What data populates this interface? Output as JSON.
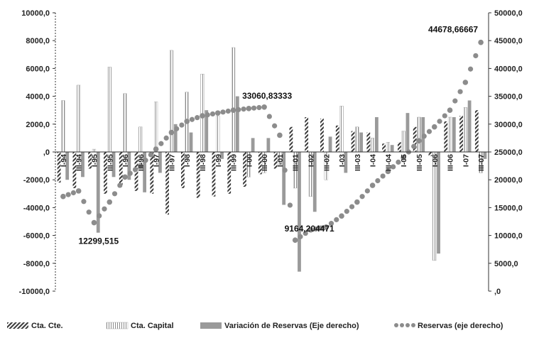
{
  "chart_data": {
    "type": "bar",
    "categories": [
      "I-94",
      "III-94",
      "I-95",
      "III-95",
      "I-96",
      "III-96",
      "I-97",
      "III-97",
      "I-98",
      "III-98",
      "I-99",
      "III-99",
      "I-00",
      "III-00",
      "I-01",
      "III-01",
      "I-02",
      "III-02",
      "I-03",
      "III-03",
      "I-04",
      "III-04",
      "I-05",
      "III-05",
      "I-06",
      "III-06",
      "I-07",
      "III-07"
    ],
    "left_axis": {
      "ylim": [
        -10000,
        10000
      ],
      "ticks": [
        "10000,0",
        "8000,0",
        "6000,0",
        "4000,0",
        "2000,0",
        ",0",
        "-2000,0",
        "-4000,0",
        "-6000,0",
        "-8000,0",
        "-10000,0"
      ]
    },
    "right_axis": {
      "ylim": [
        0,
        50000
      ],
      "ticks": [
        "50000,0",
        "45000,0",
        "40000,0",
        "35000,0",
        "30000,0",
        "25000,0",
        "20000,0",
        "15000,0",
        "10000,0",
        "5000,0",
        ",0"
      ]
    },
    "series": [
      {
        "name": "Cta. Cte.",
        "axis": "left",
        "pattern": "hatch",
        "values": [
          -2200,
          -2600,
          -1200,
          -3000,
          -2500,
          -2800,
          -3000,
          -4500,
          -2600,
          -3300,
          -3200,
          -3000,
          -2500,
          -1600,
          -1200,
          1800,
          2500,
          2400,
          1900,
          1500,
          1400,
          600,
          700,
          1800,
          -300,
          2200,
          2600,
          3000
        ]
      },
      {
        "name": "Cta. Capital",
        "axis": "left",
        "pattern": "vertical",
        "values": [
          3700,
          4800,
          200,
          6100,
          4200,
          1800,
          3600,
          7300,
          4300,
          5600,
          2600,
          7500,
          -1800,
          -1500,
          -900,
          -2600,
          -3200,
          -2000,
          3300,
          1800,
          1000,
          700,
          1500,
          2500,
          -7800,
          2500,
          3200,
          -1500
        ]
      },
      {
        "name": "Variación de Reservas (Eje derecho)",
        "axis": "left",
        "pattern": "solid",
        "values": [
          -2000,
          -1800,
          -5800,
          -1800,
          -2000,
          -2900,
          -1500,
          2000,
          1400,
          3000,
          -500,
          4000,
          1000,
          1000,
          -3800,
          -8600,
          -4300,
          1100,
          -1500,
          1400,
          2500,
          500,
          2800,
          2500,
          -7300,
          2500,
          3700,
          -500
        ]
      },
      {
        "name": "Reservas (eje derecho)",
        "axis": "right",
        "type": "dots",
        "x": [
          0,
          1,
          2,
          3,
          4,
          5,
          6,
          7,
          8,
          9,
          10,
          11,
          12,
          13,
          14,
          15,
          16,
          17,
          18,
          19,
          20,
          21,
          22,
          23,
          24,
          25,
          26,
          27
        ],
        "values": [
          17000,
          18000,
          12300,
          16000,
          20500,
          22500,
          25500,
          28500,
          30500,
          31500,
          32000,
          32500,
          32800,
          33060,
          28000,
          9164,
          11000,
          11500,
          13500,
          16000,
          19000,
          21500,
          24000,
          27000,
          29500,
          32500,
          37500,
          44679
        ]
      }
    ],
    "annotations": [
      {
        "text": "12299,515",
        "series": 3,
        "index": 2
      },
      {
        "text": "33060,83333",
        "series": 3,
        "index": 13
      },
      {
        "text": "9164,204471",
        "series": 3,
        "index": 15
      },
      {
        "text": "44678,66667",
        "series": 3,
        "index": 27
      }
    ],
    "legend_position": "bottom"
  },
  "legend": {
    "items": [
      "Cta. Cte.",
      "Cta. Capital",
      "Variación de Reservas (Eje derecho)",
      "Reservas (eje derecho)"
    ]
  },
  "colors": {
    "bars": "#9a9a9a",
    "hatch": "#3a3a3a",
    "vertical": "#7a7a7a",
    "dots": "#8c8c8c",
    "axis": "#333333"
  }
}
